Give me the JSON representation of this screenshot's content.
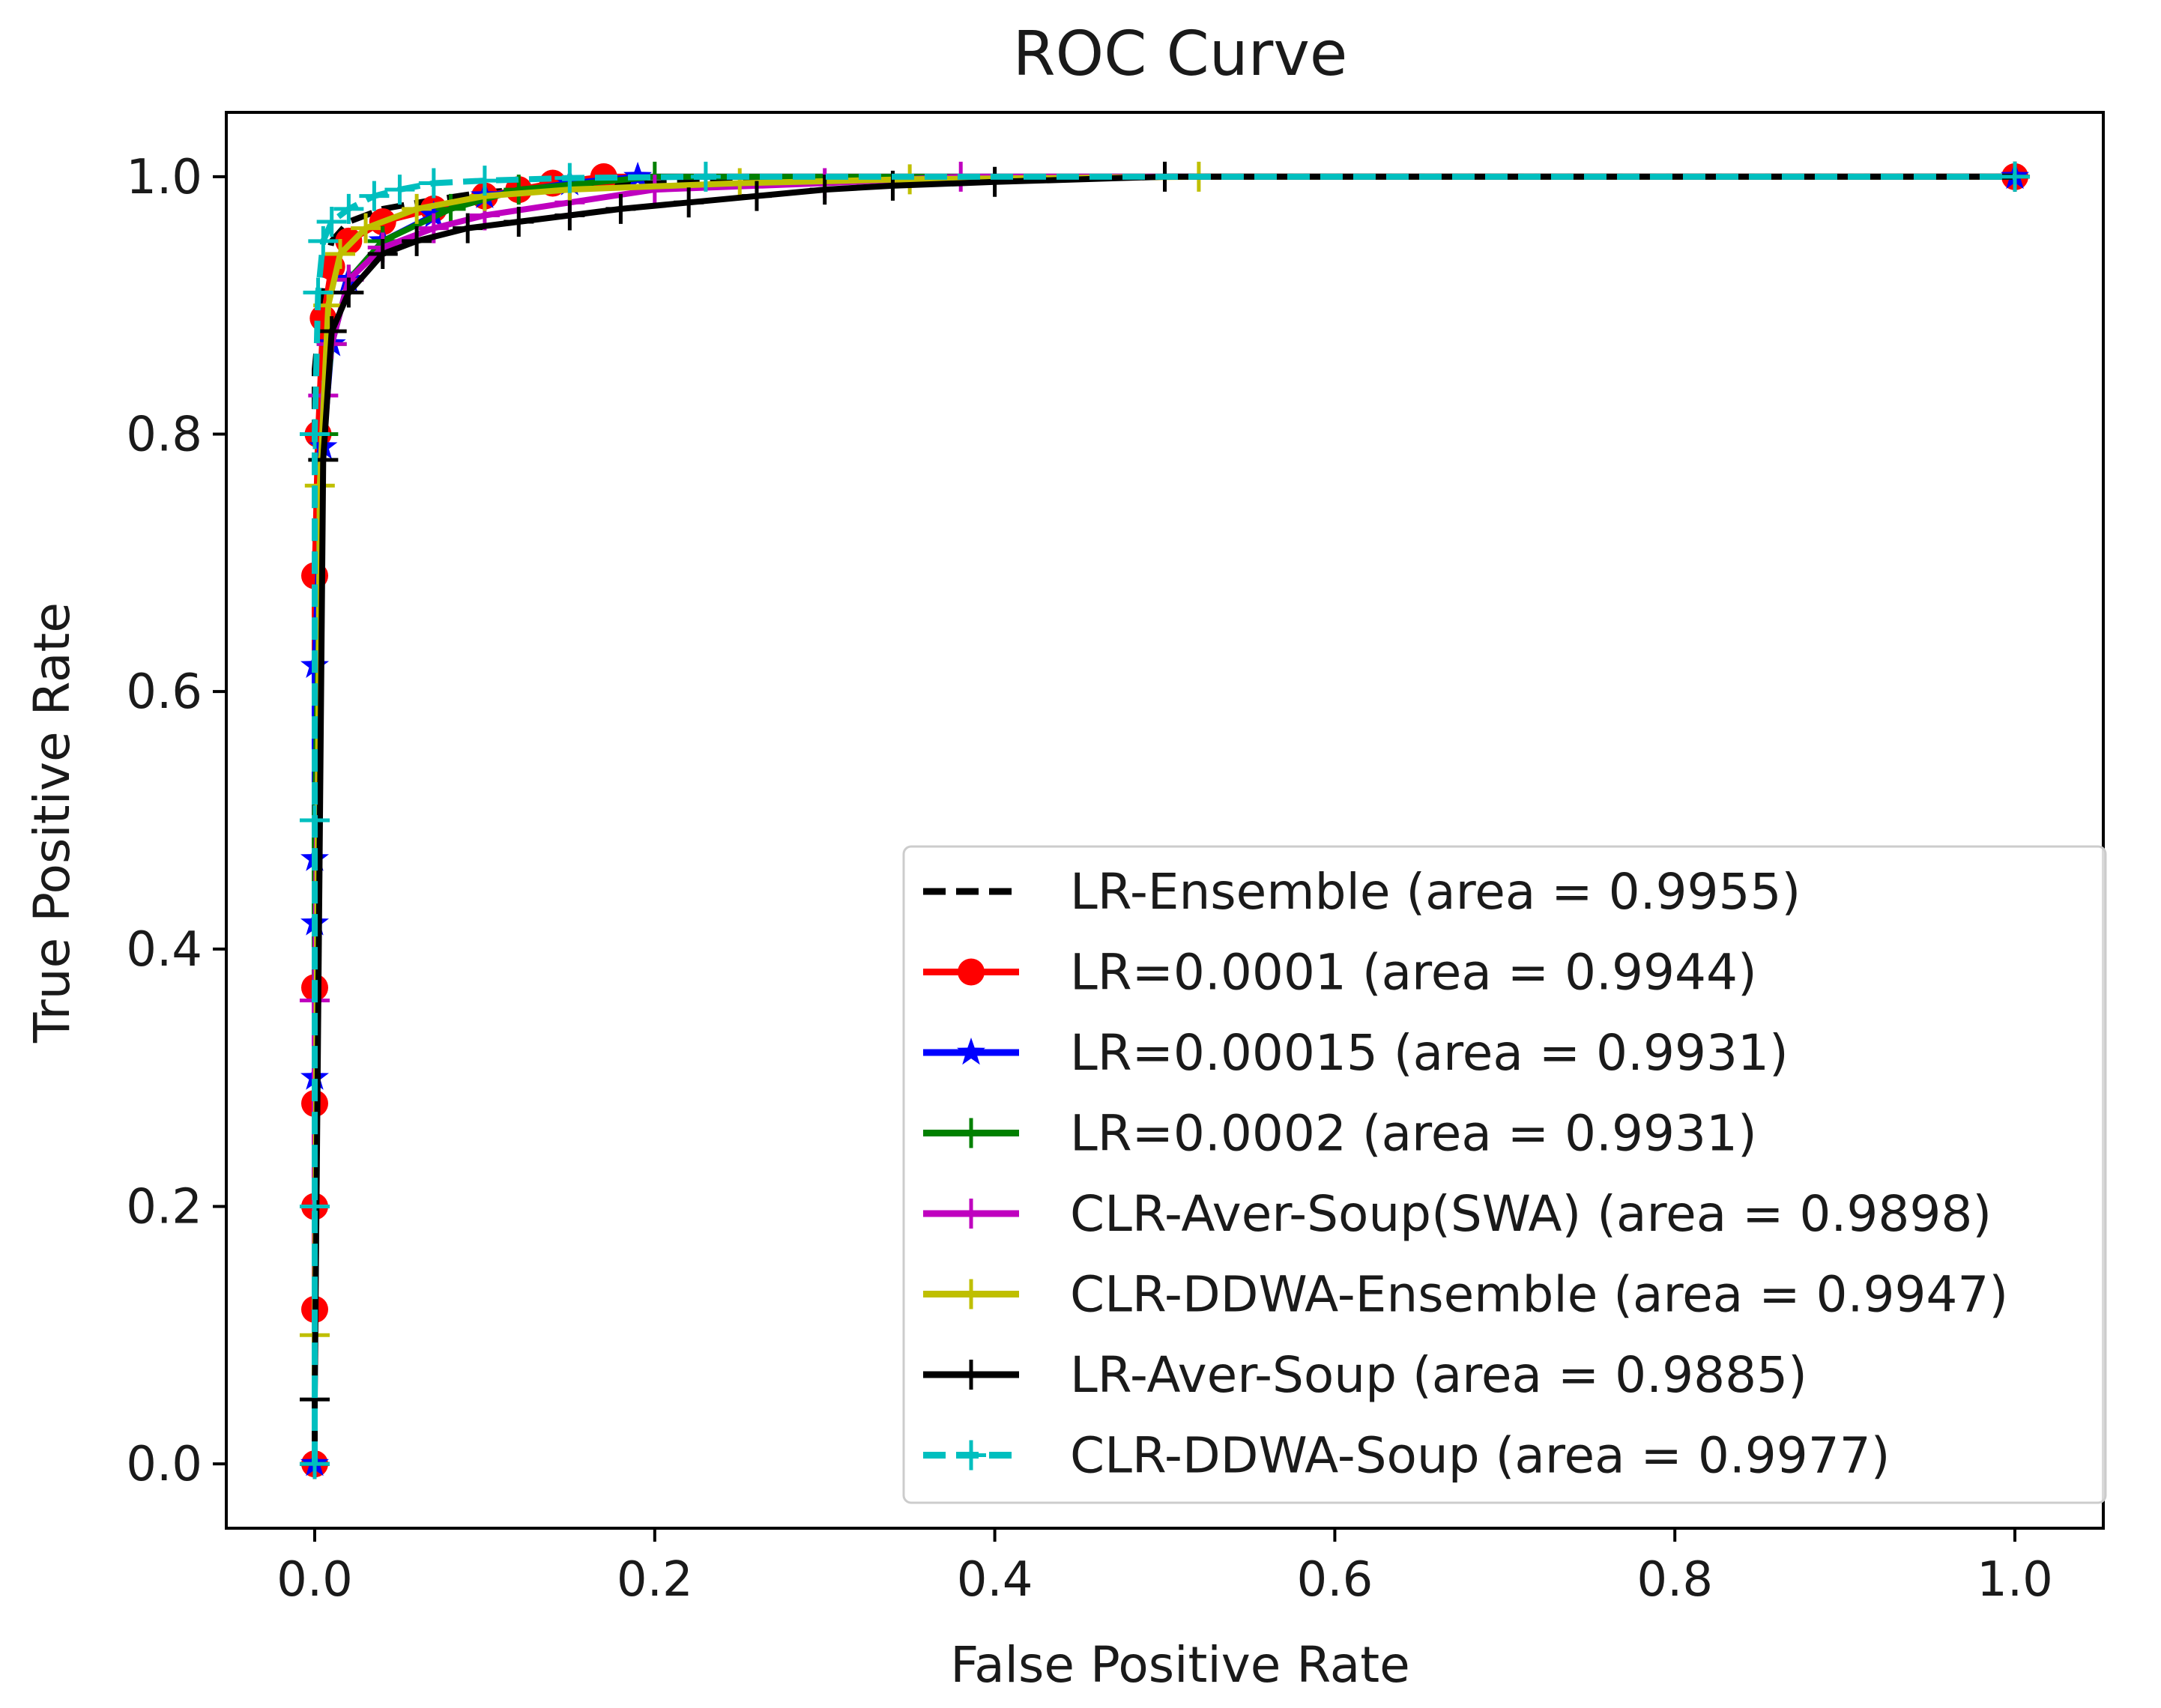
{
  "chart_data": {
    "type": "line",
    "title": "ROC Curve",
    "xlabel": "False Positive Rate",
    "ylabel": "True Positive Rate",
    "xlim": [
      -0.052,
      1.052
    ],
    "ylim": [
      -0.05,
      1.05
    ],
    "xticks": [
      0.0,
      0.2,
      0.4,
      0.6,
      0.8,
      1.0
    ],
    "xtick_labels": [
      "0.0",
      "0.2",
      "0.4",
      "0.6",
      "0.8",
      "1.0"
    ],
    "yticks": [
      0.0,
      0.2,
      0.4,
      0.6,
      0.8,
      1.0
    ],
    "ytick_labels": [
      "0.0",
      "0.2",
      "0.4",
      "0.6",
      "0.8",
      "1.0"
    ],
    "grid": false,
    "legend_position": "lower-right",
    "series": [
      {
        "name": "LR-Ensemble (area = 0.9955)",
        "color": "#000000",
        "linestyle": "dashed",
        "marker": "none",
        "x": [
          0.0,
          0.0,
          0.005,
          0.01,
          0.02,
          0.04,
          0.07,
          0.1,
          0.15,
          0.2,
          0.3,
          0.4,
          0.5,
          1.0
        ],
        "y": [
          0.0,
          0.85,
          0.92,
          0.95,
          0.965,
          0.975,
          0.982,
          0.988,
          0.992,
          0.995,
          0.997,
          0.998,
          1.0,
          1.0
        ]
      },
      {
        "name": "LR=0.0001 (area = 0.9944)",
        "color": "#ff0000",
        "linestyle": "solid",
        "marker": "circle",
        "x": [
          0.0,
          0.0,
          0.0,
          0.0,
          0.0,
          0.0,
          0.002,
          0.005,
          0.01,
          0.02,
          0.04,
          0.07,
          0.1,
          0.12,
          0.14,
          0.17,
          1.0
        ],
        "y": [
          0.0,
          0.12,
          0.2,
          0.28,
          0.37,
          0.69,
          0.8,
          0.89,
          0.93,
          0.95,
          0.965,
          0.975,
          0.985,
          0.99,
          0.995,
          1.0,
          1.0
        ]
      },
      {
        "name": "LR=0.00015 (area = 0.9931)",
        "color": "#0000ff",
        "linestyle": "solid",
        "marker": "star",
        "x": [
          0.0,
          0.0,
          0.0,
          0.0,
          0.0,
          0.005,
          0.01,
          0.02,
          0.04,
          0.07,
          0.1,
          0.15,
          0.19,
          1.0
        ],
        "y": [
          0.0,
          0.3,
          0.42,
          0.47,
          0.62,
          0.79,
          0.87,
          0.92,
          0.95,
          0.97,
          0.985,
          0.995,
          1.0,
          1.0
        ]
      },
      {
        "name": "LR=0.0002 (area = 0.9931)",
        "color": "#008000",
        "linestyle": "solid",
        "marker": "plus",
        "x": [
          0.0,
          0.0,
          0.005,
          0.01,
          0.02,
          0.04,
          0.08,
          0.12,
          0.2,
          1.0
        ],
        "y": [
          0.0,
          0.5,
          0.8,
          0.87,
          0.92,
          0.95,
          0.975,
          0.99,
          1.0,
          1.0
        ]
      },
      {
        "name": "CLR-Aver-Soup(SWA) (area = 0.9898)",
        "color": "#bf00bf",
        "linestyle": "solid",
        "marker": "plus",
        "x": [
          0.0,
          0.0,
          0.005,
          0.01,
          0.02,
          0.04,
          0.07,
          0.1,
          0.15,
          0.2,
          0.3,
          0.38,
          1.0
        ],
        "y": [
          0.0,
          0.36,
          0.83,
          0.87,
          0.92,
          0.945,
          0.96,
          0.97,
          0.98,
          0.99,
          0.995,
          1.0,
          1.0
        ]
      },
      {
        "name": "CLR-DDWA-Ensemble (area = 0.9947)",
        "color": "#bfbf00",
        "linestyle": "solid",
        "marker": "plus",
        "x": [
          0.0,
          0.0,
          0.003,
          0.008,
          0.015,
          0.03,
          0.06,
          0.1,
          0.15,
          0.25,
          0.35,
          0.52,
          1.0
        ],
        "y": [
          0.0,
          0.1,
          0.76,
          0.9,
          0.94,
          0.96,
          0.975,
          0.985,
          0.99,
          0.995,
          0.998,
          1.0,
          1.0
        ]
      },
      {
        "name": "LR-Aver-Soup (area = 0.9885)",
        "color": "#000000",
        "linestyle": "solid",
        "marker": "plus",
        "x": [
          0.0,
          0.0,
          0.005,
          0.01,
          0.02,
          0.04,
          0.06,
          0.09,
          0.12,
          0.15,
          0.18,
          0.22,
          0.26,
          0.3,
          0.34,
          0.4,
          0.5,
          1.0
        ],
        "y": [
          0.0,
          0.05,
          0.78,
          0.88,
          0.91,
          0.94,
          0.95,
          0.96,
          0.965,
          0.97,
          0.975,
          0.98,
          0.985,
          0.99,
          0.993,
          0.996,
          1.0,
          1.0
        ]
      },
      {
        "name": "CLR-DDWA-Soup (area = 0.9977)",
        "color": "#00bfbf",
        "linestyle": "dashed",
        "marker": "plus",
        "x": [
          0.0,
          0.0,
          0.0,
          0.0,
          0.002,
          0.005,
          0.01,
          0.02,
          0.035,
          0.05,
          0.07,
          0.1,
          0.15,
          0.23,
          1.0
        ],
        "y": [
          0.0,
          0.2,
          0.5,
          0.8,
          0.91,
          0.95,
          0.965,
          0.975,
          0.985,
          0.99,
          0.995,
          0.997,
          0.999,
          1.0,
          1.0
        ]
      }
    ]
  }
}
